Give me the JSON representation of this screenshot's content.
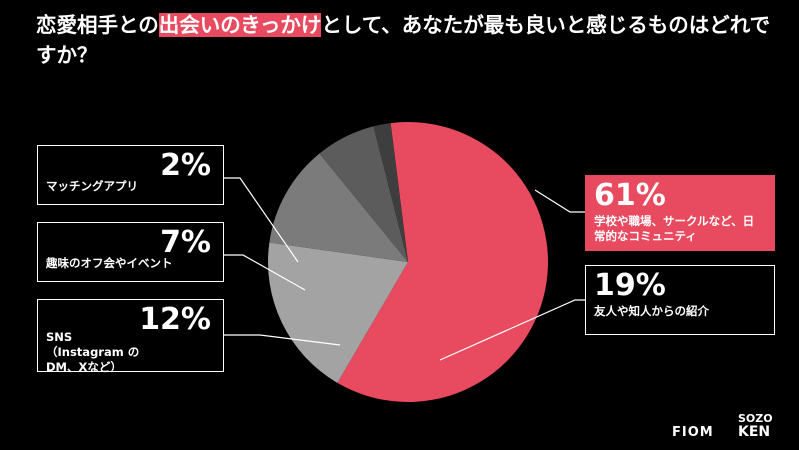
{
  "chart_data": {
    "type": "pie",
    "title": [
      "恋愛相手との",
      "出会いのきっかけ",
      "として、あなたが最も良いと感じるものはどれですか？"
    ],
    "categories": [
      "学校や職場、サークルなど、日常的なコミュニティ",
      "友人や知人からの紹介",
      "SNS（Instagram のDM、Xなど）",
      "趣味のオフ会やイベント",
      "マッチングアプリ"
    ],
    "values": [
      61,
      19,
      12,
      7,
      2
    ],
    "value_labels": [
      "61%",
      "19%",
      "12%",
      "7%",
      "2%"
    ],
    "colors": [
      "#e84a5f",
      "#a3a3a3",
      "#7b7b7b",
      "#5c5c5c",
      "#3e3e3e"
    ]
  },
  "logos": [
    "FIOM",
    "SOZO",
    "KEN"
  ]
}
